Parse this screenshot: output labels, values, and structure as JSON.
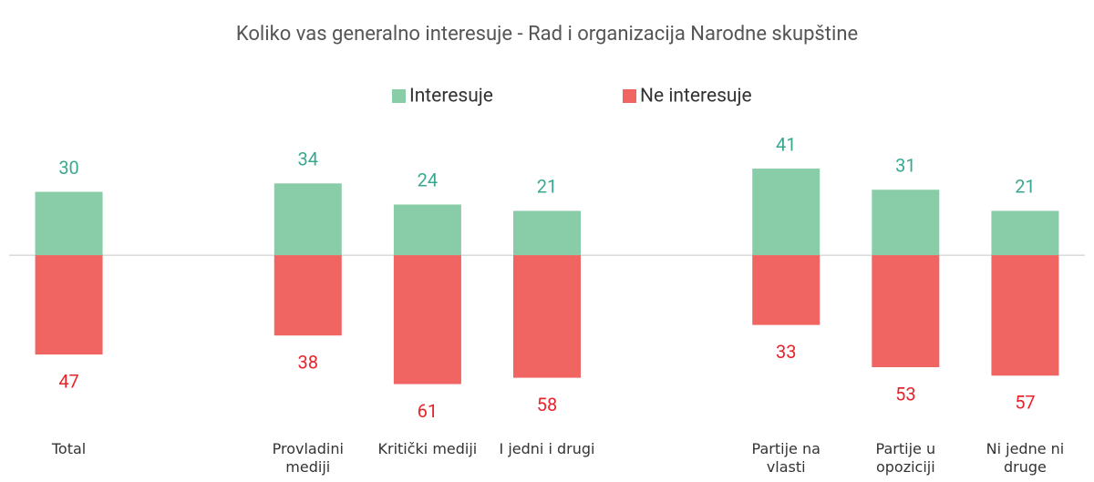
{
  "chart_data": {
    "type": "bar",
    "title": "Koliko vas generalno interesuje - Rad i organizacija Narodne skupštine",
    "categories": [
      "Total",
      null,
      "Provladini mediji",
      "Kritički mediji",
      "I jedni i drugi",
      null,
      "Partije na vlasti",
      "Partije u opoziciji",
      "Ni jedne ni druge"
    ],
    "series": [
      {
        "name": "Interesuje",
        "color": "#88cca8",
        "label_color": "#3aa890",
        "values": [
          30,
          null,
          34,
          24,
          21,
          null,
          41,
          31,
          21
        ]
      },
      {
        "name": "Ne interesuje",
        "color": "#f06461",
        "label_color": "#e8242b",
        "values": [
          -47,
          null,
          -38,
          -61,
          -58,
          null,
          -33,
          -53,
          -57
        ],
        "value_labels": [
          "47",
          null,
          "38",
          "61",
          "58",
          null,
          "33",
          "53",
          "57"
        ]
      }
    ],
    "ylim": [
      -75,
      60
    ],
    "legend": "top"
  }
}
